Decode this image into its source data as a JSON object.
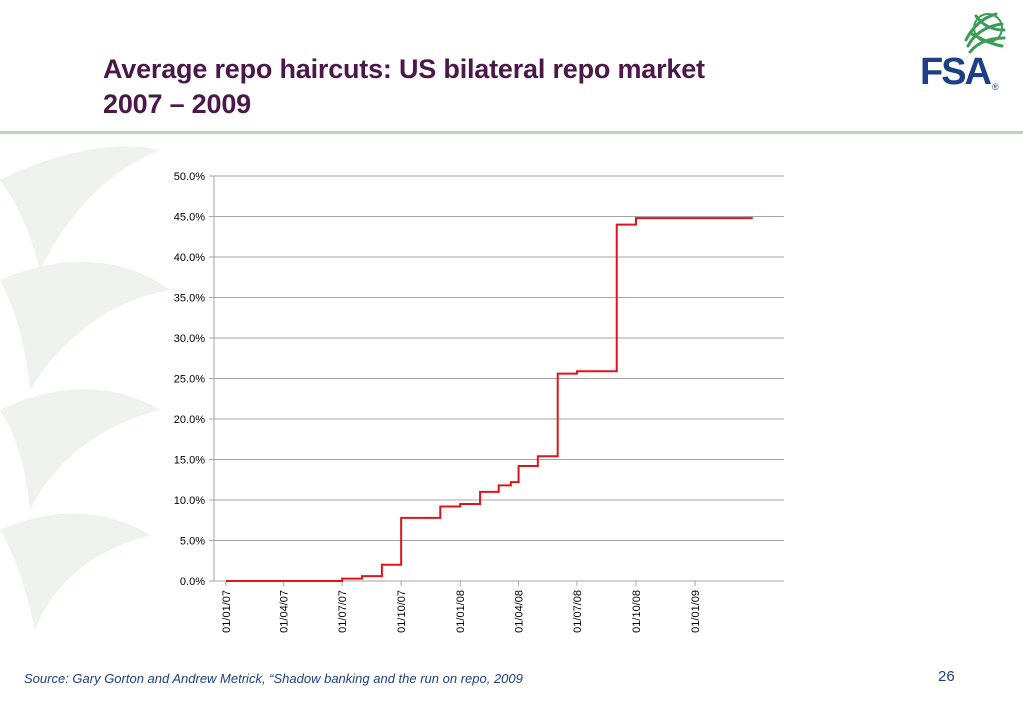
{
  "slide": {
    "title_line1": "Average repo haircuts: US bilateral repo market",
    "title_line2": "2007 – 2009",
    "logo_text": "FSA",
    "logo_registered": "®",
    "source": "Source: Gary Gorton and Andrew Metrick, “Shadow banking and the run on repo, 2009",
    "page_number": "26"
  },
  "colors": {
    "title": "#4b1849",
    "accent_blue": "#1d3f86",
    "logo_green": "#3d9c58",
    "rule": "#bcd3bc",
    "series_line": "#e0141e",
    "gridline": "#a6a6a6",
    "watermark": "#eef3ee"
  },
  "icons": {
    "logo": "fsa-leaf-logo-icon",
    "background": "leaf-watermark-icon"
  },
  "chart_data": {
    "type": "line",
    "step": true,
    "title": "",
    "xlabel": "",
    "ylabel": "",
    "ylim": [
      0,
      50
    ],
    "y_tick_step": 5,
    "y_ticks": [
      "0.0%",
      "5.0%",
      "10.0%",
      "15.0%",
      "20.0%",
      "25.0%",
      "30.0%",
      "35.0%",
      "40.0%",
      "45.0%",
      "50.0%"
    ],
    "x_range": [
      "2007-01-01",
      "2009-05-01"
    ],
    "x_tick_labels": [
      "01/01/07",
      "01/04/07",
      "01/07/07",
      "01/10/07",
      "01/01/08",
      "01/04/08",
      "01/07/08",
      "01/10/08",
      "01/01/09"
    ],
    "x_tick_dates": [
      "2007-01-01",
      "2007-04-01",
      "2007-07-01",
      "2007-10-01",
      "2008-01-01",
      "2008-04-01",
      "2008-07-01",
      "2008-10-01",
      "2009-01-01"
    ],
    "grid": "horizontal",
    "legend": "none",
    "series": [
      {
        "points": [
          {
            "date": "2007-01-01",
            "value": 0.0
          },
          {
            "date": "2007-07-01",
            "value": 0.3
          },
          {
            "date": "2007-08-01",
            "value": 0.6
          },
          {
            "date": "2007-09-01",
            "value": 2.0
          },
          {
            "date": "2007-10-01",
            "value": 7.8
          },
          {
            "date": "2007-12-01",
            "value": 9.2
          },
          {
            "date": "2008-01-01",
            "value": 9.5
          },
          {
            "date": "2008-02-01",
            "value": 11.0
          },
          {
            "date": "2008-03-01",
            "value": 11.8
          },
          {
            "date": "2008-03-20",
            "value": 12.2
          },
          {
            "date": "2008-04-01",
            "value": 14.2
          },
          {
            "date": "2008-05-01",
            "value": 15.4
          },
          {
            "date": "2008-06-01",
            "value": 25.6
          },
          {
            "date": "2008-07-01",
            "value": 25.9
          },
          {
            "date": "2008-09-01",
            "value": 44.0
          },
          {
            "date": "2008-10-01",
            "value": 44.8
          },
          {
            "date": "2009-04-01",
            "value": 44.8
          }
        ]
      }
    ]
  }
}
